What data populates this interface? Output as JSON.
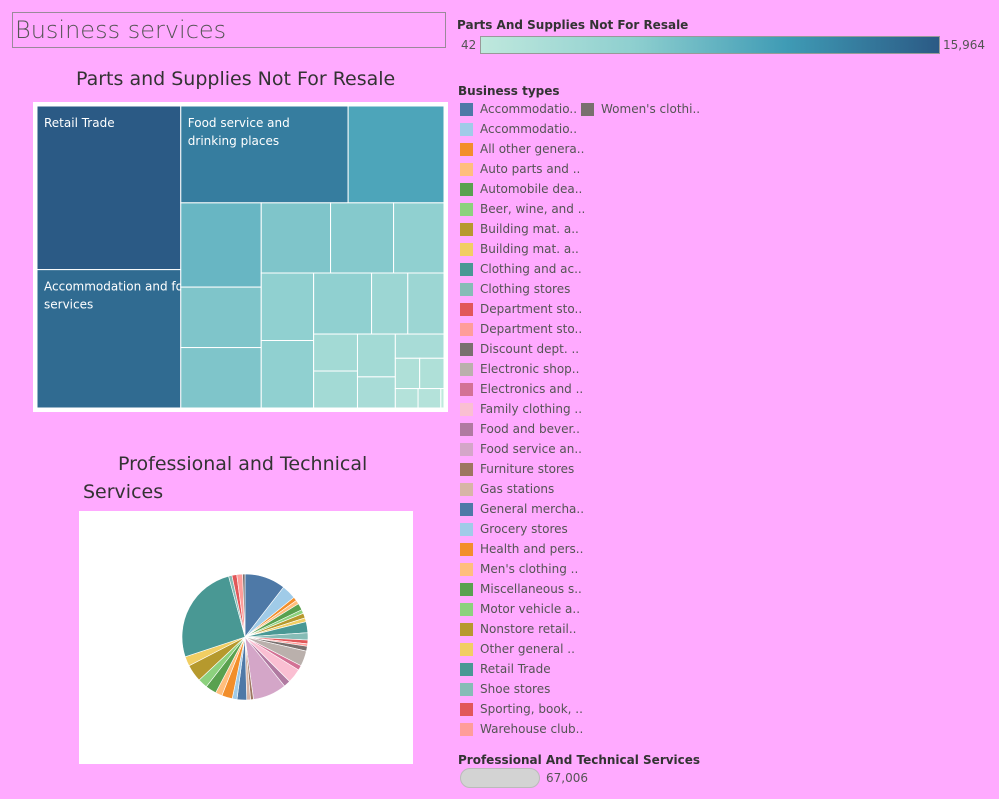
{
  "dashboard_title": "Business services",
  "treemap": {
    "title": "Parts and Supplies Not For Resale",
    "labels": {
      "retail": "Retail Trade",
      "food": "Food service and\ndrinking places",
      "accom": "Accommodation and food\nservices"
    }
  },
  "pie": {
    "title_line1": "Professional and Technical",
    "title_line2": "Services"
  },
  "color_legend": {
    "title": "Parts And Supplies Not For Resale",
    "min_label": "42",
    "max_label": "15,964"
  },
  "types_legend": {
    "title": "Business types",
    "items": [
      {
        "label": "Accommodatio..",
        "color": "#4e79a7"
      },
      {
        "label": "Accommodatio..",
        "color": "#a0cbe8"
      },
      {
        "label": "All other genera..",
        "color": "#f28e2b"
      },
      {
        "label": "Auto parts and ..",
        "color": "#ffbe7d"
      },
      {
        "label": "Automobile dea..",
        "color": "#59a14f"
      },
      {
        "label": "Beer, wine, and ..",
        "color": "#8cd17d"
      },
      {
        "label": "Building mat. a..",
        "color": "#b6992d"
      },
      {
        "label": "Building mat. a..",
        "color": "#f1ce63"
      },
      {
        "label": "Clothing and ac..",
        "color": "#499894"
      },
      {
        "label": "Clothing stores",
        "color": "#86bcb6"
      },
      {
        "label": "Department sto..",
        "color": "#e15759"
      },
      {
        "label": "Department sto..",
        "color": "#ff9d9a"
      },
      {
        "label": "Discount dept. ..",
        "color": "#79706e"
      },
      {
        "label": "Electronic shop..",
        "color": "#bab0ac"
      },
      {
        "label": "Electronics and ..",
        "color": "#d37295"
      },
      {
        "label": "Family clothing ..",
        "color": "#fabfd2"
      },
      {
        "label": "Food and bever..",
        "color": "#b07aa1"
      },
      {
        "label": "Food service an..",
        "color": "#d4a6c8"
      },
      {
        "label": "Furniture stores",
        "color": "#9d7660"
      },
      {
        "label": "Gas stations",
        "color": "#d7b5a6"
      },
      {
        "label": "General mercha..",
        "color": "#4e79a7"
      },
      {
        "label": "Grocery stores",
        "color": "#a0cbe8"
      },
      {
        "label": "Health and pers..",
        "color": "#f28e2b"
      },
      {
        "label": "Men's clothing ..",
        "color": "#ffbe7d"
      },
      {
        "label": "Miscellaneous s..",
        "color": "#59a14f"
      },
      {
        "label": "Motor vehicle a..",
        "color": "#8cd17d"
      },
      {
        "label": "Nonstore retail..",
        "color": "#b6992d"
      },
      {
        "label": "Other general ..",
        "color": "#f1ce63"
      },
      {
        "label": "Retail Trade",
        "color": "#499894"
      },
      {
        "label": "Shoe stores",
        "color": "#86bcb6"
      },
      {
        "label": "Sporting, book, ..",
        "color": "#e15759"
      },
      {
        "label": "Warehouse club..",
        "color": "#ff9d9a"
      },
      {
        "label": "Women's clothi..",
        "color": "#79706e"
      }
    ]
  },
  "size_legend": {
    "title": "Professional And Technical Services",
    "value_label": "67,006"
  },
  "chart_data": [
    {
      "type": "treemap",
      "title": "Parts and Supplies Not For Resale",
      "color_range": [
        42,
        15964
      ],
      "nodes": [
        {
          "label": "Retail Trade",
          "value": 15964
        },
        {
          "label": "Accommodation and food services",
          "value": 13500
        },
        {
          "label": "Food service and drinking places",
          "value": 11000
        },
        {
          "label": "",
          "value": 6300
        },
        {
          "label": "",
          "value": 4600
        },
        {
          "label": "",
          "value": 3300
        },
        {
          "label": "",
          "value": 3300
        },
        {
          "label": "",
          "value": 3300
        },
        {
          "label": "",
          "value": 3000
        },
        {
          "label": "",
          "value": 2400
        },
        {
          "label": "",
          "value": 2400
        },
        {
          "label": "",
          "value": 2400
        },
        {
          "label": "",
          "value": 2400
        },
        {
          "label": "",
          "value": 1500
        },
        {
          "label": "",
          "value": 1500
        },
        {
          "label": "",
          "value": 1100
        },
        {
          "label": "",
          "value": 1100
        },
        {
          "label": "",
          "value": 1100
        },
        {
          "label": "",
          "value": 800
        },
        {
          "label": "",
          "value": 800
        },
        {
          "label": "",
          "value": 500
        },
        {
          "label": "",
          "value": 500
        },
        {
          "label": "",
          "value": 300
        },
        {
          "label": "",
          "value": 300
        },
        {
          "label": "",
          "value": 42
        }
      ]
    },
    {
      "type": "pie",
      "title": "Professional and Technical Services",
      "total": 67006,
      "slices": [
        {
          "category": "Accommodatio..",
          "value": 8.5,
          "color": "#4e79a7"
        },
        {
          "category": "Accommodatio..",
          "value": 3.0,
          "color": "#a0cbe8"
        },
        {
          "category": "All other genera..",
          "value": 0.8,
          "color": "#f28e2b"
        },
        {
          "category": "Auto parts and ..",
          "value": 0.8,
          "color": "#ffbe7d"
        },
        {
          "category": "Automobile dea..",
          "value": 1.4,
          "color": "#59a14f"
        },
        {
          "category": "Beer, wine, and ..",
          "value": 0.8,
          "color": "#8cd17d"
        },
        {
          "category": "Building mat. a..",
          "value": 1.0,
          "color": "#b6992d"
        },
        {
          "category": "Building mat. a..",
          "value": 0.8,
          "color": "#f1ce63"
        },
        {
          "category": "Clothing and ac..",
          "value": 2.3,
          "color": "#499894"
        },
        {
          "category": "Clothing stores",
          "value": 1.5,
          "color": "#86bcb6"
        },
        {
          "category": "Department sto..",
          "value": 0.8,
          "color": "#e15759"
        },
        {
          "category": "Department sto..",
          "value": 0.5,
          "color": "#ff9d9a"
        },
        {
          "category": "Discount dept. ..",
          "value": 1.0,
          "color": "#79706e"
        },
        {
          "category": "Electronic shop..",
          "value": 3.2,
          "color": "#bab0ac"
        },
        {
          "category": "Electronics and ..",
          "value": 1.0,
          "color": "#d37295"
        },
        {
          "category": "Family clothing ..",
          "value": 3.0,
          "color": "#fabfd2"
        },
        {
          "category": "Food and bever..",
          "value": 1.4,
          "color": "#b07aa1"
        },
        {
          "category": "Food service an..",
          "value": 7.0,
          "color": "#d4a6c8"
        },
        {
          "category": "Furniture stores",
          "value": 0.6,
          "color": "#9d7660"
        },
        {
          "category": "Gas stations",
          "value": 0.8,
          "color": "#d7b5a6"
        },
        {
          "category": "General mercha..",
          "value": 2.0,
          "color": "#4e79a7"
        },
        {
          "category": "Grocery stores",
          "value": 1.0,
          "color": "#a0cbe8"
        },
        {
          "category": "Health and pers..",
          "value": 2.2,
          "color": "#f28e2b"
        },
        {
          "category": "Men's clothing ..",
          "value": 1.4,
          "color": "#ffbe7d"
        },
        {
          "category": "Miscellaneous s..",
          "value": 2.3,
          "color": "#59a14f"
        },
        {
          "category": "Motor vehicle a..",
          "value": 2.0,
          "color": "#8cd17d"
        },
        {
          "category": "Nonstore retail..",
          "value": 3.6,
          "color": "#b6992d"
        },
        {
          "category": "Other general ..",
          "value": 2.0,
          "color": "#f1ce63"
        },
        {
          "category": "Retail Trade",
          "value": 21.0,
          "color": "#499894"
        },
        {
          "category": "Shoe stores",
          "value": 0.7,
          "color": "#86bcb6"
        },
        {
          "category": "Sporting, book, ..",
          "value": 1.0,
          "color": "#e15759"
        },
        {
          "category": "Warehouse club..",
          "value": 1.2,
          "color": "#ff9d9a"
        },
        {
          "category": "Women's clothi..",
          "value": 0.5,
          "color": "#79706e"
        }
      ]
    }
  ]
}
